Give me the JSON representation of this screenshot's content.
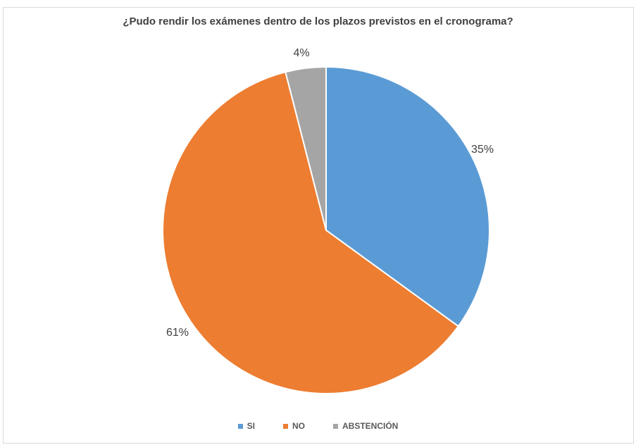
{
  "chart_data": {
    "type": "pie",
    "title": "¿Pudo rendir los exámenes dentro de los plazos previstos en el cronograma?",
    "categories": [
      "SI",
      "NO",
      "ABSTENCIÓN"
    ],
    "values": [
      35,
      61,
      4
    ],
    "data_labels": [
      "35%",
      "61%",
      "4%"
    ],
    "colors": [
      "#5B9BD5",
      "#ED7D31",
      "#A5A5A5"
    ],
    "legend_position": "bottom"
  }
}
